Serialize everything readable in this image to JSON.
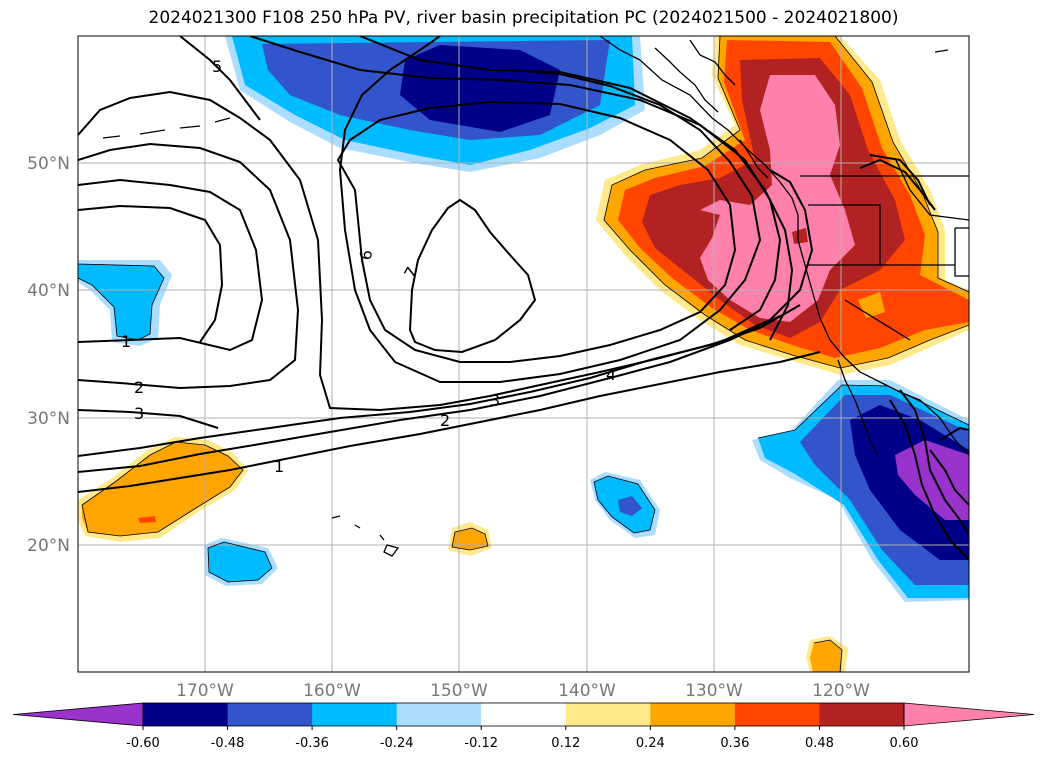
{
  "title": "2024021300 F108 250 hPa PV, river basin precipitation PC (2024021500 - 2024021800)",
  "lat_labels": [
    "50°N",
    "40°N",
    "30°N",
    "20°N"
  ],
  "lon_labels": [
    "170°W",
    "160°W",
    "150°W",
    "140°W",
    "130°W",
    "120°W"
  ],
  "contour_labels": [
    "5",
    "6",
    "7",
    "1",
    "2",
    "3",
    "4",
    "2",
    "3",
    "1"
  ],
  "colorbar": {
    "colors": [
      "#9933cc",
      "#000088",
      "#3355cc",
      "#00bbff",
      "#aaddff",
      "#ffffff",
      "#ffe98a",
      "#ffa500",
      "#ff4500",
      "#b22222",
      "#ff80aa"
    ],
    "tick_labels": [
      "-0.60",
      "-0.48",
      "-0.36",
      "-0.24",
      "-0.12",
      "0.12",
      "0.24",
      "0.36",
      "0.48",
      "0.60"
    ],
    "extend": "both"
  },
  "colors": {
    "grid": "#b0b0b0",
    "tick_text": "#777777",
    "contour": "#000000"
  }
}
